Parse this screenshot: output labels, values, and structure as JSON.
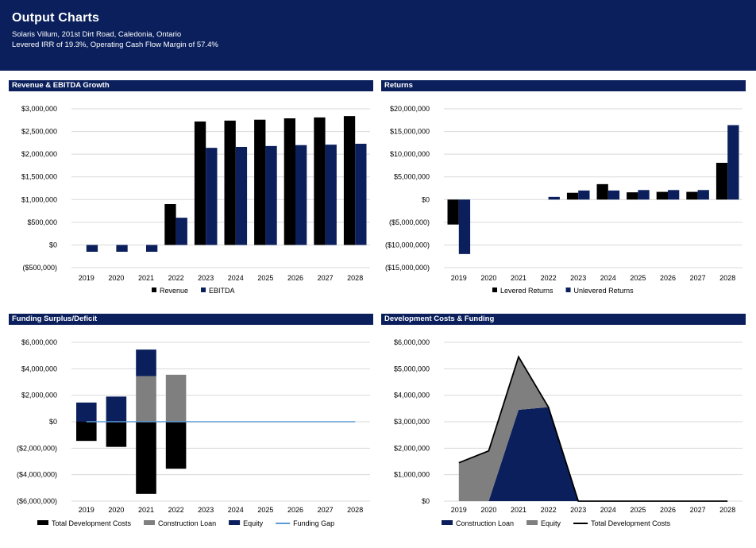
{
  "header": {
    "title": "Output Charts",
    "address": "Solaris Villum, 201st Dirt Road, Caledonia, Ontario",
    "metrics": "Levered IRR of 19.3%, Operating Cash Flow Margin of 57.4%"
  },
  "colors": {
    "navy": "#0a1f5c",
    "black": "#000000",
    "gray": "#7f7f7f",
    "lightblue": "#5b9bd5"
  },
  "charts": [
    {
      "id": "revenue",
      "panel_title": "Revenue & EBITDA Growth",
      "chart_data": {
        "type": "bar",
        "categories": [
          "2019",
          "2020",
          "2021",
          "2022",
          "2023",
          "2024",
          "2025",
          "2026",
          "2027",
          "2028"
        ],
        "ylim": [
          -500000,
          3000000
        ],
        "yticks": [
          -500000,
          0,
          500000,
          1000000,
          1500000,
          2000000,
          2500000,
          3000000
        ],
        "ytick_labels": [
          "($500,000)",
          "$0",
          "$500,000",
          "$1,000,000",
          "$1,500,000",
          "$2,000,000",
          "$2,500,000",
          "$3,000,000"
        ],
        "series": [
          {
            "name": "Revenue",
            "color": "#000000",
            "values": [
              0,
              0,
              0,
              900000,
              2720000,
              2740000,
              2760000,
              2790000,
              2810000,
              2840000
            ]
          },
          {
            "name": "EBITDA",
            "color": "#0a1f5c",
            "values": [
              -150000,
              -150000,
              -150000,
              600000,
              2140000,
              2160000,
              2180000,
              2200000,
              2210000,
              2230000
            ]
          }
        ]
      }
    },
    {
      "id": "returns",
      "panel_title": "Returns",
      "chart_data": {
        "type": "bar",
        "categories": [
          "2019",
          "2020",
          "2021",
          "2022",
          "2023",
          "2024",
          "2025",
          "2026",
          "2027",
          "2028"
        ],
        "ylim": [
          -15000000,
          20000000
        ],
        "yticks": [
          -15000000,
          -10000000,
          -5000000,
          0,
          5000000,
          10000000,
          15000000,
          20000000
        ],
        "ytick_labels": [
          "($15,000,000)",
          "($10,000,000)",
          "($5,000,000)",
          "$0",
          "$5,000,000",
          "$10,000,000",
          "$15,000,000",
          "$20,000,000"
        ],
        "series": [
          {
            "name": "Levered Returns",
            "color": "#000000",
            "values": [
              -5500000,
              0,
              0,
              0,
              1500000,
              3400000,
              1600000,
              1700000,
              1700000,
              8100000
            ]
          },
          {
            "name": "Unlevered Returns",
            "color": "#0a1f5c",
            "values": [
              -12000000,
              0,
              0,
              600000,
              2000000,
              2000000,
              2100000,
              2100000,
              2100000,
              16400000
            ]
          }
        ]
      }
    },
    {
      "id": "funding",
      "panel_title": "Funding Surplus/Deficit",
      "chart_data": {
        "type": "bar",
        "stacked": true,
        "categories": [
          "2019",
          "2020",
          "2021",
          "2022",
          "2023",
          "2024",
          "2025",
          "2026",
          "2027",
          "2028"
        ],
        "ylim": [
          -6000000,
          6000000
        ],
        "yticks": [
          -6000000,
          -4000000,
          -2000000,
          0,
          2000000,
          4000000,
          6000000
        ],
        "ytick_labels": [
          "($6,000,000)",
          "($4,000,000)",
          "($2,000,000)",
          "$0",
          "$2,000,000",
          "$4,000,000",
          "$6,000,000"
        ],
        "series": [
          {
            "name": "Total Development Costs",
            "color": "#000000",
            "values": [
              -1450000,
              -1900000,
              -5450000,
              -3550000,
              0,
              0,
              0,
              0,
              0,
              0
            ]
          },
          {
            "name": "Construction Loan",
            "color": "#7f7f7f",
            "values": [
              0,
              0,
              3450000,
              3550000,
              0,
              0,
              0,
              0,
              0,
              0
            ]
          },
          {
            "name": "Equity",
            "color": "#0a1f5c",
            "values": [
              1450000,
              1900000,
              2000000,
              0,
              0,
              0,
              0,
              0,
              0,
              0
            ]
          },
          {
            "name": "Funding Gap",
            "color": "#5b9bd5",
            "type": "line",
            "values": [
              0,
              0,
              0,
              0,
              0,
              0,
              0,
              0,
              0,
              0
            ]
          }
        ]
      }
    },
    {
      "id": "devcosts",
      "panel_title": "Development Costs & Funding",
      "chart_data": {
        "type": "area",
        "categories": [
          "2019",
          "2020",
          "2021",
          "2022",
          "2023",
          "2024",
          "2025",
          "2026",
          "2027",
          "2028"
        ],
        "ylim": [
          0,
          6000000
        ],
        "yticks": [
          0,
          1000000,
          2000000,
          3000000,
          4000000,
          5000000,
          6000000
        ],
        "ytick_labels": [
          "$0",
          "$1,000,000",
          "$2,000,000",
          "$3,000,000",
          "$4,000,000",
          "$5,000,000",
          "$6,000,000"
        ],
        "series": [
          {
            "name": "Construction Loan",
            "color": "#0a1f5c",
            "values": [
              0,
              0,
              3450000,
              3550000,
              0,
              0,
              0,
              0,
              0,
              0
            ]
          },
          {
            "name": "Equity",
            "color": "#7f7f7f",
            "values": [
              1450000,
              1900000,
              2000000,
              0,
              0,
              0,
              0,
              0,
              0,
              0
            ]
          },
          {
            "name": "Total Development Costs",
            "color": "#000000",
            "type": "line",
            "values": [
              1450000,
              1900000,
              5450000,
              3550000,
              0,
              0,
              0,
              0,
              0,
              0
            ]
          }
        ]
      }
    }
  ]
}
